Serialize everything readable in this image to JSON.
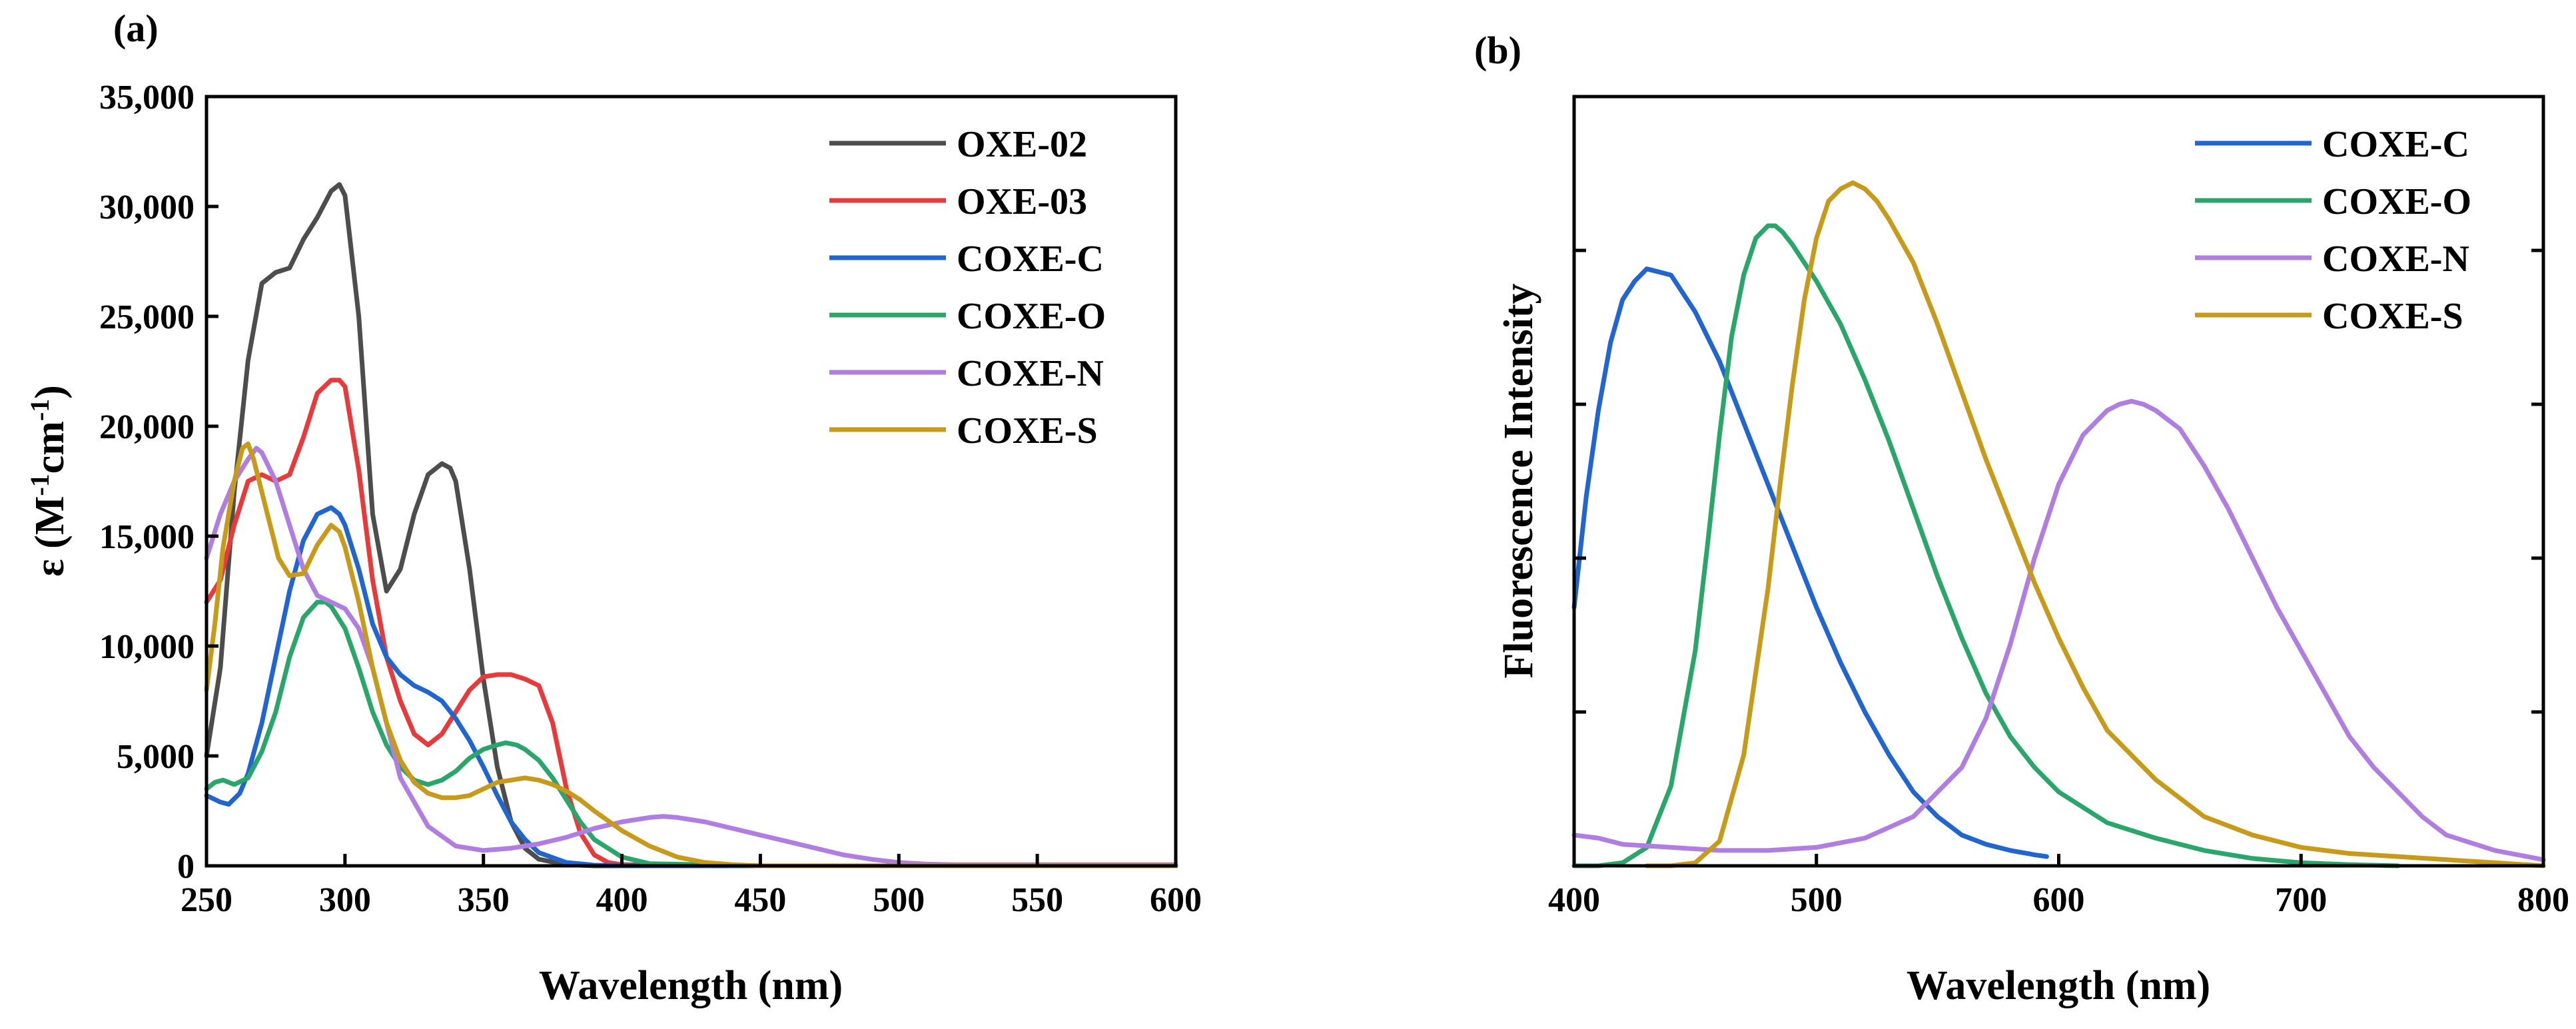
{
  "chart_data": [
    {
      "panel": "(a)",
      "type": "line",
      "title": "",
      "xlabel": "Wavelength (nm)",
      "ylabel_main": "ε (M",
      "ylabel_sup1": "-1",
      "ylabel_mid": "cm",
      "ylabel_sup2": "-1",
      "ylabel_end": ")",
      "xlim": [
        250,
        600
      ],
      "ylim": [
        0,
        35000
      ],
      "xticks": [
        250,
        300,
        350,
        400,
        450,
        500,
        550,
        600
      ],
      "xtick_labels": [
        "250",
        "300",
        "350",
        "400",
        "450",
        "500",
        "550",
        "600"
      ],
      "yticks": [
        0,
        5000,
        10000,
        15000,
        20000,
        25000,
        30000,
        35000
      ],
      "ytick_labels": [
        "0",
        "5,000",
        "10,000",
        "15,000",
        "20,000",
        "25,000",
        "30,000",
        "35,000"
      ],
      "legend_position": "top-right",
      "series": [
        {
          "name": "OXE-02",
          "color": "#4d4d4d",
          "x": [
            250,
            255,
            260,
            265,
            270,
            275,
            280,
            285,
            290,
            295,
            298,
            300,
            305,
            310,
            315,
            320,
            325,
            330,
            335,
            338,
            340,
            345,
            350,
            355,
            360,
            365,
            370,
            380,
            390,
            400,
            450,
            500,
            600
          ],
          "y": [
            5000,
            9000,
            17000,
            23000,
            26500,
            27000,
            27200,
            28500,
            29500,
            30700,
            31000,
            30500,
            25000,
            16000,
            12500,
            13500,
            16000,
            17800,
            18300,
            18100,
            17500,
            13500,
            8500,
            4500,
            2000,
            800,
            300,
            50,
            0,
            0,
            0,
            0,
            0
          ]
        },
        {
          "name": "OXE-03",
          "color": "#e8393b",
          "x": [
            250,
            255,
            260,
            265,
            270,
            275,
            280,
            285,
            290,
            295,
            298,
            300,
            305,
            310,
            315,
            320,
            325,
            330,
            335,
            340,
            345,
            350,
            355,
            360,
            365,
            370,
            375,
            380,
            385,
            390,
            395,
            400,
            450,
            600
          ],
          "y": [
            12000,
            13000,
            15500,
            17500,
            17800,
            17500,
            17800,
            19500,
            21500,
            22100,
            22100,
            21800,
            18000,
            13000,
            9500,
            7500,
            6000,
            5500,
            6000,
            7000,
            8000,
            8600,
            8700,
            8700,
            8500,
            8200,
            6500,
            3500,
            1500,
            500,
            150,
            50,
            0,
            0
          ]
        },
        {
          "name": "COXE-C",
          "color": "#2166d0",
          "x": [
            250,
            255,
            258,
            262,
            265,
            270,
            275,
            280,
            285,
            290,
            295,
            298,
            300,
            305,
            310,
            315,
            320,
            325,
            330,
            335,
            340,
            345,
            350,
            355,
            360,
            365,
            370,
            380,
            390,
            400,
            450,
            600
          ],
          "y": [
            3200,
            2900,
            2800,
            3300,
            4200,
            6500,
            9500,
            12500,
            14800,
            16000,
            16300,
            16000,
            15500,
            13500,
            11000,
            9500,
            8700,
            8200,
            7900,
            7500,
            6700,
            5700,
            4500,
            3200,
            2000,
            1200,
            600,
            150,
            30,
            0,
            0,
            0
          ]
        },
        {
          "name": "COXE-O",
          "color": "#2aa66b",
          "x": [
            250,
            253,
            256,
            260,
            265,
            270,
            275,
            280,
            285,
            290,
            293,
            295,
            300,
            305,
            310,
            315,
            320,
            325,
            330,
            335,
            340,
            345,
            350,
            355,
            358,
            362,
            365,
            370,
            375,
            380,
            385,
            390,
            400,
            410,
            450,
            600
          ],
          "y": [
            3500,
            3800,
            3900,
            3700,
            4000,
            5200,
            7000,
            9500,
            11300,
            12000,
            12000,
            11800,
            10800,
            9000,
            7000,
            5500,
            4500,
            3900,
            3700,
            3900,
            4300,
            4900,
            5300,
            5500,
            5600,
            5500,
            5300,
            4800,
            4000,
            3000,
            2000,
            1200,
            400,
            100,
            0,
            0
          ]
        },
        {
          "name": "COXE-N",
          "color": "#b07de0",
          "x": [
            250,
            255,
            260,
            265,
            268,
            270,
            275,
            280,
            285,
            290,
            295,
            300,
            305,
            310,
            315,
            320,
            330,
            340,
            350,
            360,
            370,
            380,
            390,
            400,
            410,
            415,
            420,
            430,
            440,
            450,
            460,
            470,
            480,
            490,
            500,
            510,
            520,
            550,
            600
          ],
          "y": [
            14000,
            16000,
            17500,
            18500,
            19000,
            18800,
            17500,
            15500,
            13500,
            12300,
            12000,
            11700,
            10800,
            9000,
            6500,
            4000,
            1800,
            900,
            700,
            800,
            1000,
            1300,
            1700,
            2000,
            2200,
            2250,
            2200,
            2000,
            1700,
            1400,
            1100,
            800,
            500,
            300,
            150,
            80,
            50,
            50,
            50
          ]
        },
        {
          "name": "COXE-S",
          "color": "#c89a1a",
          "x": [
            250,
            253,
            256,
            260,
            263,
            265,
            267,
            270,
            273,
            276,
            280,
            285,
            290,
            295,
            298,
            300,
            305,
            310,
            315,
            320,
            325,
            330,
            335,
            340,
            345,
            350,
            355,
            360,
            365,
            370,
            375,
            380,
            385,
            390,
            400,
            410,
            420,
            430,
            440,
            450,
            460,
            600
          ],
          "y": [
            8000,
            11000,
            14500,
            17500,
            19000,
            19200,
            18500,
            17000,
            15500,
            14000,
            13200,
            13300,
            14600,
            15500,
            15200,
            14500,
            12000,
            9000,
            6500,
            4800,
            3800,
            3300,
            3100,
            3100,
            3200,
            3500,
            3800,
            3900,
            4000,
            3900,
            3700,
            3400,
            3000,
            2500,
            1600,
            900,
            400,
            150,
            50,
            0,
            0,
            0
          ]
        }
      ]
    },
    {
      "panel": "(b)",
      "type": "line",
      "title": "",
      "xlabel": "Wavelength (nm)",
      "ylabel": "Fluorescence Intensity",
      "xlim": [
        400,
        800
      ],
      "ylim": [
        0,
        1.25
      ],
      "xticks": [
        400,
        500,
        600,
        700,
        800
      ],
      "xtick_labels": [
        "400",
        "500",
        "600",
        "700",
        "800"
      ],
      "yticks_unlabeled": [
        0.25,
        0.5,
        0.75,
        1.0
      ],
      "legend_position": "top-right",
      "series": [
        {
          "name": "COXE-C",
          "color": "#2166d0",
          "x": [
            400,
            405,
            410,
            415,
            420,
            425,
            430,
            435,
            440,
            445,
            450,
            460,
            470,
            480,
            490,
            500,
            510,
            520,
            530,
            540,
            550,
            560,
            570,
            580,
            590,
            595
          ],
          "y": [
            0.42,
            0.6,
            0.74,
            0.85,
            0.92,
            0.95,
            0.97,
            0.965,
            0.96,
            0.93,
            0.9,
            0.82,
            0.72,
            0.62,
            0.52,
            0.42,
            0.33,
            0.25,
            0.18,
            0.12,
            0.08,
            0.05,
            0.035,
            0.025,
            0.018,
            0.015
          ]
        },
        {
          "name": "COXE-O",
          "color": "#2aa66b",
          "x": [
            400,
            410,
            420,
            430,
            440,
            450,
            455,
            460,
            465,
            470,
            475,
            480,
            483,
            486,
            490,
            495,
            500,
            510,
            520,
            530,
            540,
            550,
            560,
            570,
            580,
            590,
            600,
            620,
            640,
            660,
            680,
            700,
            720,
            740
          ],
          "y": [
            0,
            0,
            0.005,
            0.03,
            0.13,
            0.35,
            0.52,
            0.7,
            0.86,
            0.96,
            1.02,
            1.04,
            1.04,
            1.03,
            1.01,
            0.98,
            0.95,
            0.88,
            0.79,
            0.69,
            0.58,
            0.47,
            0.37,
            0.28,
            0.21,
            0.16,
            0.12,
            0.07,
            0.045,
            0.025,
            0.012,
            0.005,
            0.002,
            0
          ]
        },
        {
          "name": "COXE-N",
          "color": "#b07de0",
          "x": [
            400,
            410,
            420,
            440,
            460,
            480,
            500,
            520,
            540,
            560,
            570,
            580,
            590,
            600,
            610,
            620,
            625,
            630,
            635,
            640,
            650,
            660,
            670,
            680,
            690,
            700,
            710,
            720,
            730,
            740,
            750,
            760,
            780,
            800
          ],
          "y": [
            0.05,
            0.045,
            0.035,
            0.03,
            0.025,
            0.025,
            0.03,
            0.045,
            0.08,
            0.16,
            0.24,
            0.36,
            0.5,
            0.62,
            0.7,
            0.74,
            0.75,
            0.755,
            0.75,
            0.74,
            0.71,
            0.65,
            0.58,
            0.5,
            0.42,
            0.35,
            0.28,
            0.21,
            0.16,
            0.12,
            0.08,
            0.05,
            0.025,
            0.01
          ]
        },
        {
          "name": "COXE-S",
          "color": "#c89a1a",
          "x": [
            430,
            440,
            450,
            460,
            470,
            480,
            485,
            490,
            495,
            500,
            505,
            510,
            515,
            520,
            525,
            530,
            540,
            550,
            560,
            570,
            580,
            590,
            600,
            610,
            620,
            640,
            660,
            680,
            700,
            720,
            740,
            760,
            780,
            800
          ],
          "y": [
            0,
            0,
            0.005,
            0.04,
            0.18,
            0.45,
            0.62,
            0.78,
            0.92,
            1.02,
            1.08,
            1.1,
            1.11,
            1.1,
            1.08,
            1.05,
            0.98,
            0.88,
            0.77,
            0.66,
            0.56,
            0.46,
            0.37,
            0.29,
            0.22,
            0.14,
            0.08,
            0.05,
            0.03,
            0.02,
            0.015,
            0.01,
            0.005,
            0
          ]
        }
      ]
    }
  ]
}
